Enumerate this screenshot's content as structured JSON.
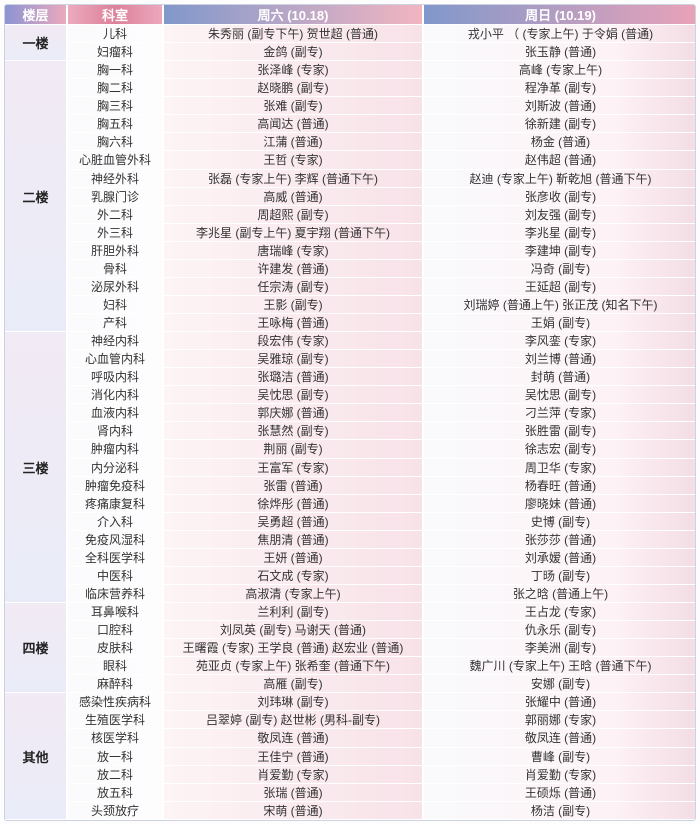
{
  "table": {
    "columns": [
      "楼层",
      "科室",
      "周六 (10.18)",
      "周日 (10.19)"
    ]
  },
  "colors": {
    "header_blue": "#8098cb",
    "header_pink": "#eba9bd",
    "header_red_pink": "#dd8099",
    "floor_cell_bg": "#e9ecf8",
    "sat_cell_pink": "#f7e2e8",
    "sun_cell_pink": "#f3dce5",
    "body_text": "#333333"
  },
  "floors": [
    {
      "name": "一楼",
      "rows": [
        {
          "dept": "儿科",
          "sat": "朱秀丽 (副专下午) 贺世超 (普通)",
          "sun": "戎小平 （ (专家上午) 于令娟 (普通)"
        },
        {
          "dept": "妇瘤科",
          "sat": "金鸽 (副专)",
          "sun": "张玉静 (普通)"
        }
      ]
    },
    {
      "name": "二楼",
      "rows": [
        {
          "dept": "胸一科",
          "sat": "张泽峰 (专家)",
          "sun": "高峰 (专家上午)"
        },
        {
          "dept": "胸二科",
          "sat": "赵晓鹏 (副专)",
          "sun": "程净革 (副专)"
        },
        {
          "dept": "胸三科",
          "sat": "张难 (副专)",
          "sun": "刘斯波 (普通)"
        },
        {
          "dept": "胸五科",
          "sat": "高闻达 (普通)",
          "sun": "徐新建 (副专)"
        },
        {
          "dept": "胸六科",
          "sat": "江蒲 (普通)",
          "sun": "杨金 (普通)"
        },
        {
          "dept": "心脏血管外科",
          "sat": "王哲 (专家)",
          "sun": "赵伟超 (普通)"
        },
        {
          "dept": "神经外科",
          "sat": "张磊 (专家上午) 李辉 (普通下午)",
          "sun": "赵迪 (专家上午) 靳乾旭 (普通下午)"
        },
        {
          "dept": "乳腺门诊",
          "sat": "高威 (普通)",
          "sun": "张彦收 (副专)"
        },
        {
          "dept": "外二科",
          "sat": "周超熙 (副专)",
          "sun": "刘友强 (副专)"
        },
        {
          "dept": "外三科",
          "sat": "李兆星 (副专上午) 夏宇翔 (普通下午)",
          "sun": "李兆星 (副专)"
        },
        {
          "dept": "肝胆外科",
          "sat": "唐瑞峰 (专家)",
          "sun": "李建坤 (副专)"
        },
        {
          "dept": "骨科",
          "sat": "许建发 (普通)",
          "sun": "冯奇 (副专)"
        },
        {
          "dept": "泌尿外科",
          "sat": "任宗涛 (副专)",
          "sun": "王延超 (副专)"
        },
        {
          "dept": "妇科",
          "sat": "王影 (副专)",
          "sun": "刘瑞婷 (普通上午) 张正茂 (知名下午)"
        },
        {
          "dept": "产科",
          "sat": "王咏梅 (普通)",
          "sun": "王娟 (副专)"
        }
      ]
    },
    {
      "name": "三楼",
      "rows": [
        {
          "dept": "神经内科",
          "sat": "段宏伟 (专家)",
          "sun": "李风銮 (专家)"
        },
        {
          "dept": "心血管内科",
          "sat": "吴雅琼 (副专)",
          "sun": "刘兰博 (普通)"
        },
        {
          "dept": "呼吸内科",
          "sat": "张璐洁 (普通)",
          "sun": "封萌 (普通)"
        },
        {
          "dept": "消化内科",
          "sat": "吴忱思 (副专)",
          "sun": "吴忱思 (副专)"
        },
        {
          "dept": "血液内科",
          "sat": "郭庆娜 (普通)",
          "sun": "刁兰萍 (专家)"
        },
        {
          "dept": "肾内科",
          "sat": "张慧然 (副专)",
          "sun": "张胜雷 (副专)"
        },
        {
          "dept": "肿瘤内科",
          "sat": "荆丽 (副专)",
          "sun": "徐志宏 (副专)"
        },
        {
          "dept": "内分泌科",
          "sat": "王富军 (专家)",
          "sun": "周卫华 (专家)"
        },
        {
          "dept": "肿瘤免疫科",
          "sat": "张雷 (普通)",
          "sun": "杨春旺 (普通)"
        },
        {
          "dept": "疼痛康复科",
          "sat": "徐烨彤 (普通)",
          "sun": "廖晓妹 (普通)"
        },
        {
          "dept": "介入科",
          "sat": "吴勇超 (普通)",
          "sun": "史博 (副专)"
        },
        {
          "dept": "免疫风湿科",
          "sat": "焦朋清 (普通)",
          "sun": "张莎莎 (普通)"
        },
        {
          "dept": "全科医学科",
          "sat": "王妍 (普通)",
          "sun": "刘承嫒 (普通)"
        },
        {
          "dept": "中医科",
          "sat": "石文成 (专家)",
          "sun": "丁旸 (副专)"
        },
        {
          "dept": "临床营养科",
          "sat": "高淑清 (专家上午)",
          "sun": "张之晗 (普通上午)"
        }
      ]
    },
    {
      "name": "四楼",
      "rows": [
        {
          "dept": "耳鼻喉科",
          "sat": "兰利利 (副专)",
          "sun": "王占龙 (专家)"
        },
        {
          "dept": "口腔科",
          "sat": "刘凤英 (副专) 马谢天 (普通)",
          "sun": "仇永乐 (副专)"
        },
        {
          "dept": "皮肤科",
          "sat": "王曙霞 (专家) 王学良 (普通) 赵宏业 (普通)",
          "sun": "李美洲 (副专)"
        },
        {
          "dept": "眼科",
          "sat": "苑亚贞 (专家上午) 张希奎 (普通下午)",
          "sun": "魏广川 (专家上午) 王晗 (普通下午)"
        },
        {
          "dept": "麻醉科",
          "sat": "高雁 (副专)",
          "sun": "安娜 (副专)"
        }
      ]
    },
    {
      "name": "其他",
      "rows": [
        {
          "dept": "感染性疾病科",
          "sat": "刘玮琳 (副专)",
          "sun": "张耀中 (普通)"
        },
        {
          "dept": "生殖医学科",
          "sat": "吕翠婷 (副专) 赵世彬 (男科-副专)",
          "sun": "郭丽娜 (专家)"
        },
        {
          "dept": "核医学科",
          "sat": "敬凤连 (普通)",
          "sun": "敬凤连 (普通)"
        },
        {
          "dept": "放一科",
          "sat": "王佳宁 (普通)",
          "sun": "曹峰 (副专)"
        },
        {
          "dept": "放二科",
          "sat": "肖爱勤 (专家)",
          "sun": "肖爱勤 (专家)"
        },
        {
          "dept": "放五科",
          "sat": "张瑞 (普通)",
          "sun": "王硕烁 (普通)"
        },
        {
          "dept": "头颈放疗",
          "sat": "宋萌 (普通)",
          "sun": "杨洁 (副专)"
        }
      ]
    }
  ]
}
